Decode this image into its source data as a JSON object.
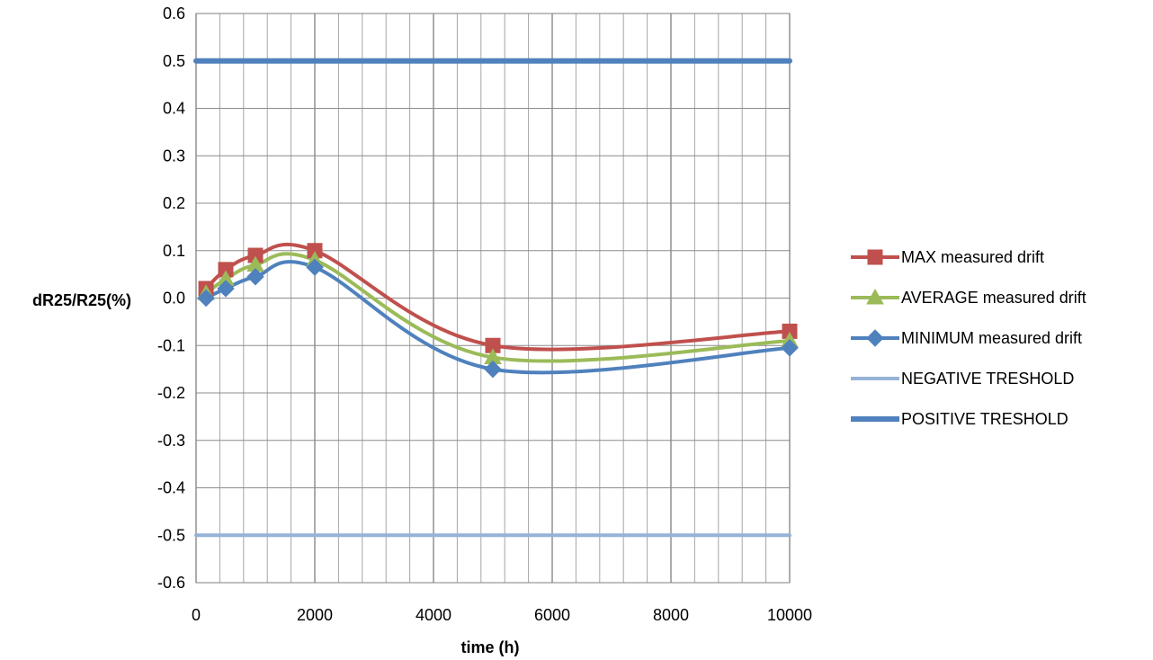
{
  "chart_data": {
    "type": "line",
    "title": "",
    "xlabel": "time (h)",
    "ylabel": "dR25/R25(%)",
    "xlim": [
      0,
      10000
    ],
    "ylim": [
      -0.6,
      0.6
    ],
    "x_ticks": [
      0,
      2000,
      4000,
      6000,
      8000,
      10000
    ],
    "x_tick_labels": [
      "0",
      "2000",
      "4000",
      "6000",
      "8000",
      "10000"
    ],
    "y_ticks": [
      0.6,
      0.5,
      0.4,
      0.3,
      0.2,
      0.1,
      0.0,
      -0.1,
      -0.2,
      -0.3,
      -0.4,
      -0.5,
      -0.6
    ],
    "y_tick_labels": [
      "0.6",
      "0.5",
      "0.4",
      "0.3",
      "0.2",
      "0.1",
      "0.0",
      "-0.1",
      "-0.2",
      "-0.3",
      "-0.4",
      "-0.5",
      "-0.6"
    ],
    "grid": true,
    "minor_x_grid_step": 400,
    "legend_position": "right",
    "series": [
      {
        "name": "MAX measured  drift",
        "color": "#c0504d",
        "marker": "square",
        "smooth": true,
        "x": [
          168,
          500,
          1000,
          2000,
          5000,
          10000
        ],
        "y": [
          0.02,
          0.06,
          0.09,
          0.1,
          -0.1,
          -0.07
        ]
      },
      {
        "name": "AVERAGE measured drift",
        "color": "#9bbb59",
        "marker": "triangle",
        "smooth": true,
        "x": [
          168,
          500,
          1000,
          2000,
          5000,
          10000
        ],
        "y": [
          0.01,
          0.04,
          0.07,
          0.08,
          -0.125,
          -0.09
        ]
      },
      {
        "name": "MINIMUM measured drift",
        "color": "#4f81bd",
        "marker": "diamond",
        "smooth": true,
        "x": [
          168,
          500,
          1000,
          2000,
          5000,
          10000
        ],
        "y": [
          0.0,
          0.02,
          0.045,
          0.065,
          -0.15,
          -0.105
        ]
      },
      {
        "name": "NEGATIVE TRESHOLD",
        "color": "#95b3d7",
        "marker": "none",
        "smooth": false,
        "x": [
          0,
          10000
        ],
        "y": [
          -0.5,
          -0.5
        ]
      },
      {
        "name": "POSITIVE TRESHOLD",
        "color": "#4f81bd",
        "marker": "none",
        "smooth": false,
        "x": [
          0,
          10000
        ],
        "y": [
          0.5,
          0.5
        ]
      }
    ]
  }
}
